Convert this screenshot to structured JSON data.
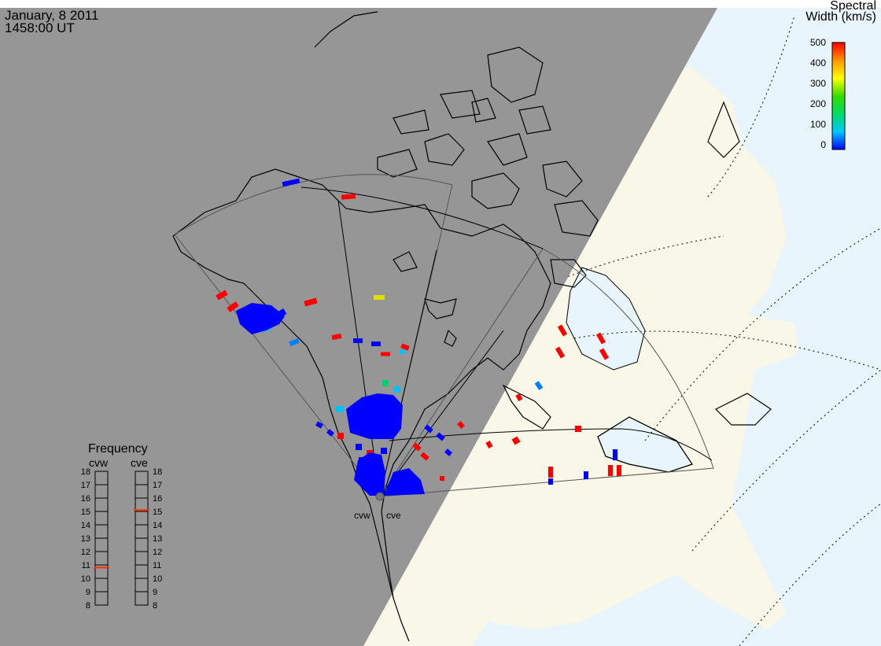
{
  "header": {
    "date": "January, 8 2011",
    "time": "1458:00 UT"
  },
  "colorbar": {
    "title_line1": "Spectral",
    "title_line2": "Width (km/s)",
    "ticks": [
      "500",
      "400",
      "300",
      "200",
      "100",
      "0"
    ],
    "colors": [
      "#0000ff",
      "#00c8ff",
      "#00dc64",
      "#32dc00",
      "#ffff00",
      "#ff9600",
      "#ff0000"
    ]
  },
  "frequency_panel": {
    "title": "Frequency",
    "columns": [
      {
        "label": "cvw",
        "value": 10.8
      },
      {
        "label": "cve",
        "value": 15.1
      }
    ],
    "ticks": [
      "18",
      "17",
      "16",
      "15",
      "14",
      "13",
      "12",
      "11",
      "10",
      "9",
      "8"
    ],
    "marker_color": "#ff3300"
  },
  "radars": {
    "labels": [
      "cvw",
      "cve"
    ]
  },
  "colors": {
    "night": "#969696",
    "land_day": "#f8f7e8",
    "ocean_day": "#e8f5fc",
    "coast": "#000000",
    "fov": "#555555"
  }
}
